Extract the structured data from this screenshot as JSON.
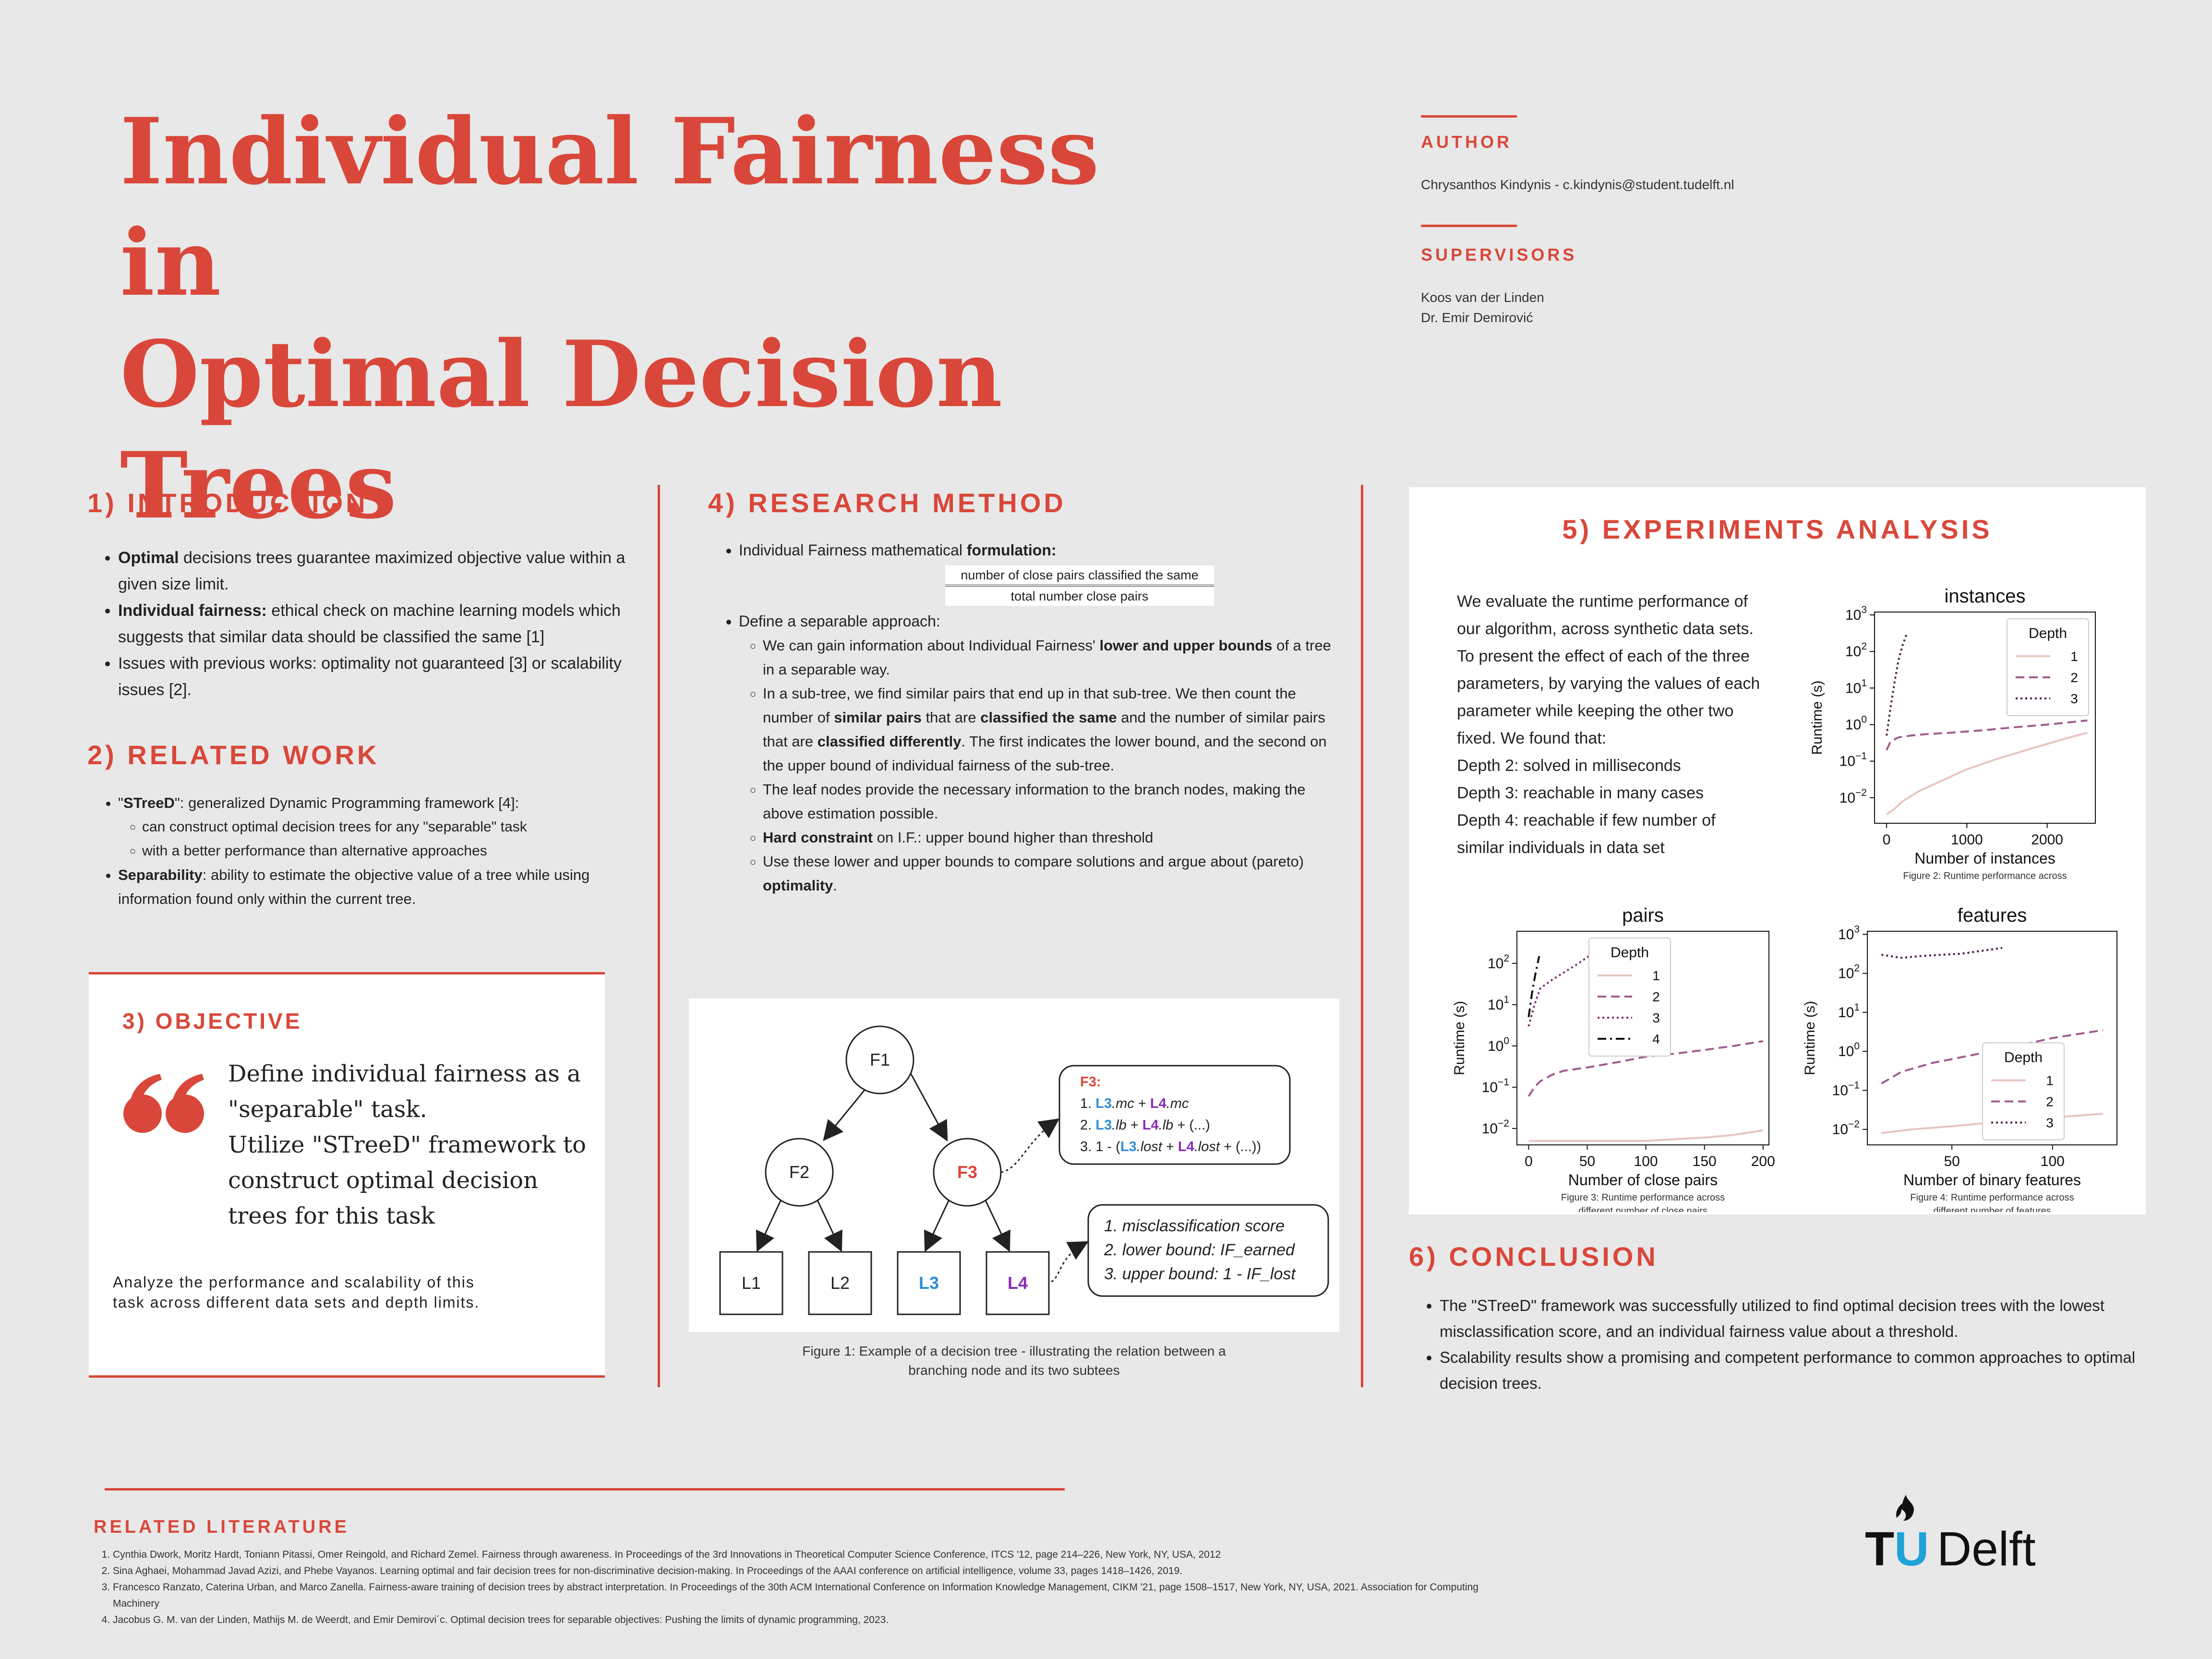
{
  "header": {
    "title_line1": "Individual Fairness in",
    "title_line2": "Optimal Decision Trees",
    "author_label": "AUTHOR",
    "author": "Chrysanthos Kindynis - c.kindynis@student.tudelft.nl",
    "supervisors_label": "SUPERVISORS",
    "supervisors": [
      "Koos van der Linden",
      "Dr. Emir Demirović"
    ]
  },
  "intro": {
    "heading": "1) INTRODUCTION",
    "items": [
      {
        "bold": "Optimal",
        "text": " decisions trees guarantee maximized objective value within a given size limit."
      },
      {
        "bold": "Individual fairness:",
        "text": " ethical check on machine learning models which suggests that similar data should be classified the same [1]"
      },
      {
        "bold": "",
        "text": "Issues with previous works: optimality not guaranteed [3] or scalability issues [2]."
      }
    ]
  },
  "related": {
    "heading": "2) RELATED WORK",
    "item1_pre": "\"",
    "item1_bold": "STreeD",
    "item1_post": "\": generalized Dynamic Programming framework [4]:",
    "sub": [
      "can construct optimal decision trees for any \"separable\" task",
      "with a better performance than alternative approaches"
    ],
    "item2_bold": "Separability",
    "item2_text": ": ability to estimate the objective value of a tree while using information found only within the current tree."
  },
  "objective": {
    "heading": "3) OBJECTIVE",
    "quote": [
      "Define individual fairness as a",
      "\"separable\" task.",
      "Utilize \"STreeD\" framework to",
      "construct optimal decision",
      "trees for this task"
    ],
    "note": [
      "Analyze the performance and scalability of this",
      "task across different data sets and depth limits."
    ]
  },
  "method": {
    "heading": "4) RESEARCH METHOD",
    "b1_pre": "Individual Fairness mathematical ",
    "b1_bold": "formulation:",
    "frac_num": "number of close pairs classified the same",
    "frac_den": "total number close pairs",
    "b2": "Define a separable approach:",
    "s1_pre": "We can gain information about Individual Fairness' ",
    "s1_bold": "lower and upper bounds",
    "s1_post": " of a tree in a separable way.",
    "s2_a": "In a sub-tree, we find similar pairs that end up in that sub-tree. We then count the number of ",
    "s2_b": "similar pairs",
    "s2_c": " that are ",
    "s2_d": "classified the same",
    "s2_e": " and the number of similar pairs that are ",
    "s2_f": "classified differently",
    "s2_g": ". The first indicates the lower bound, and the second on the upper bound of individual fairness of the sub-tree.",
    "s3": "The leaf nodes provide the necessary information to the branch nodes, making the above estimation possible.",
    "s4_bold": "Hard constraint",
    "s4_text": " on I.F.: upper bound higher than threshold",
    "s5_pre": "Use these lower and upper bounds to compare solutions and argue about (pareto) ",
    "s5_bold": "optimality",
    "s5_post": "."
  },
  "tree": {
    "nodes": [
      "F1",
      "F2",
      "F3"
    ],
    "leaves": [
      "L1",
      "L2",
      "L3",
      "L4"
    ],
    "f3_title": "F3:",
    "f3_lines": [
      {
        "n": "1. ",
        "a": "L3",
        "a_s": ".mc",
        "p": " + ",
        "b": "L4",
        "b_s": ".mc",
        "r": ""
      },
      {
        "n": "2. ",
        "a": "L3",
        "a_s": ".lb",
        "p": " + ",
        "b": "L4",
        "b_s": ".lb",
        "r": " + (...)"
      },
      {
        "n": "3. 1 - (",
        "a": "L3",
        "a_s": ".lost",
        "p": " + ",
        "b": "L4",
        "b_s": ".lost",
        "r": " + (...))"
      }
    ],
    "leaf_lines": [
      "1. misclassification score",
      "2. lower bound: IF_earned",
      "3. upper bound: 1 - IF_lost"
    ],
    "caption": [
      "Figure 1: Example of a decision tree - illustrating the relation between a",
      "branching node and its two subtees"
    ],
    "colors": {
      "blue": "#2e8fd6",
      "purple": "#8a2ab8",
      "red": "#d9473a"
    }
  },
  "experiments": {
    "heading": "5) EXPERIMENTS ANALYSIS",
    "text": [
      "We evaluate the runtime performance of",
      "our algorithm, across synthetic data sets.",
      "To present the effect of each of the three",
      "parameters, by varying the values of each",
      "parameter while keeping the other two",
      "fixed. We found that:",
      "Depth 2: solved in milliseconds",
      "Depth 3: reachable in many cases",
      "Depth 4: reachable if few number of",
      "similar individuals in data set"
    ]
  },
  "conclusion": {
    "heading": "6) CONCLUSION",
    "items": [
      "The \"STreeD\" framework was successfully utilized to find optimal decision trees with the lowest misclassification score, and an individual fairness value about a threshold.",
      "Scalability results show a promising and competent performance to common approaches to optimal decision trees."
    ]
  },
  "literature": {
    "heading": "RELATED LITERATURE",
    "refs": [
      "Cynthia Dwork, Moritz Hardt, Toniann Pitassi, Omer Reingold, and Richard Zemel. Fairness through awareness. In Proceedings of the 3rd Innovations in Theoretical Computer Science Conference, ITCS '12, page 214–226, New York, NY, USA, 2012",
      "Sina Aghaei, Mohammad Javad Azizi, and Phebe Vayanos. Learning optimal and fair decision trees for non-discriminative decision-making. In Proceedings of the AAAI conference on artificial intelligence, volume 33, pages 1418–1426, 2019.",
      "Francesco Ranzato, Caterina Urban, and Marco Zanella. Fairness-aware training of decision trees by abstract interpretation. In Proceedings of the 30th ACM International Conference on Information Knowledge Management, CIKM '21, page 1508–1517, New York, NY, USA, 2021. Association for Computing Machinery",
      "Jacobus G. M. van der Linden, Mathijs M. de Weerdt, and Emir Demirovi´c. Optimal decision trees for separable objectives: Pushing the limits of dynamic programming, 2023."
    ]
  },
  "logo": {
    "tu": "TU",
    "delft": "Delft"
  },
  "chart_data": [
    {
      "type": "line",
      "title": "instances",
      "xlabel": "Number of instances",
      "ylabel": "Runtime (s)",
      "yscale": "log",
      "xlim": [
        -150,
        2600
      ],
      "ylim": [
        0.002,
        1200
      ],
      "xticks": [
        0,
        1000,
        2000
      ],
      "yticks": [
        0.01,
        0.1,
        1,
        10,
        100,
        1000
      ],
      "legend_title": "Depth",
      "legend_position": "top-right",
      "caption": [
        "Figure 2: Runtime performance across"
      ],
      "series": [
        {
          "name": "1",
          "color": "#e8c4c0",
          "dash": "solid",
          "x": [
            0,
            100,
            200,
            400,
            700,
            1000,
            1400,
            1800,
            2200,
            2500
          ],
          "y": [
            0.0035,
            0.005,
            0.008,
            0.015,
            0.03,
            0.06,
            0.12,
            0.22,
            0.4,
            0.6
          ]
        },
        {
          "name": "2",
          "color": "#a05a8e",
          "dash": "dashed",
          "x": [
            0,
            50,
            150,
            300,
            500,
            800,
            1200,
            1600,
            2000,
            2500
          ],
          "y": [
            0.2,
            0.35,
            0.45,
            0.5,
            0.55,
            0.6,
            0.7,
            0.85,
            1.0,
            1.3
          ]
        },
        {
          "name": "3",
          "color": "#4a1e45",
          "dash": "dotted",
          "x": [
            0,
            50,
            100,
            150,
            200,
            250
          ],
          "y": [
            0.5,
            3,
            15,
            60,
            150,
            300
          ]
        }
      ]
    },
    {
      "type": "line",
      "title": "pairs",
      "xlabel": "Number of close pairs",
      "ylabel": "Runtime (s)",
      "yscale": "log",
      "xlim": [
        -10,
        205
      ],
      "ylim": [
        0.004,
        600
      ],
      "xticks": [
        0,
        50,
        100,
        150,
        200
      ],
      "yticks": [
        0.01,
        0.1,
        1,
        10,
        100
      ],
      "legend_title": "Depth",
      "legend_position": "top-left",
      "caption": [
        "Figure 3: Runtime performance across",
        "different number of close pairs"
      ],
      "series": [
        {
          "name": "1",
          "color": "#e8c4c0",
          "dash": "solid",
          "x": [
            0,
            25,
            50,
            75,
            100,
            125,
            150,
            175,
            200
          ],
          "y": [
            0.005,
            0.005,
            0.005,
            0.005,
            0.005,
            0.0055,
            0.006,
            0.007,
            0.009
          ]
        },
        {
          "name": "2",
          "color": "#a05a8e",
          "dash": "dashed",
          "x": [
            0,
            5,
            10,
            20,
            30,
            50,
            75,
            100,
            125,
            150,
            175,
            200
          ],
          "y": [
            0.06,
            0.1,
            0.14,
            0.2,
            0.25,
            0.3,
            0.4,
            0.55,
            0.65,
            0.8,
            1.0,
            1.3
          ]
        },
        {
          "name": "3",
          "color": "#7a2e6e",
          "dash": "dotted",
          "x": [
            0,
            5,
            10,
            20,
            30,
            40,
            50,
            60
          ],
          "y": [
            3,
            10,
            25,
            40,
            60,
            90,
            140,
            250
          ]
        },
        {
          "name": "4",
          "color": "#111111",
          "dash": "dashdot",
          "x": [
            0,
            3,
            6,
            9
          ],
          "y": [
            5,
            20,
            60,
            150
          ]
        }
      ]
    },
    {
      "type": "line",
      "title": "features",
      "xlabel": "Number of binary features",
      "ylabel": "Runtime (s)",
      "yscale": "log",
      "xlim": [
        8,
        132
      ],
      "ylim": [
        0.004,
        1200
      ],
      "xticks": [
        50,
        100
      ],
      "yticks": [
        0.01,
        0.1,
        1,
        10,
        100,
        1000
      ],
      "legend_title": "Depth",
      "legend_position": "center",
      "caption": [
        "Figure 4: Runtime performance across",
        "different number of features"
      ],
      "series": [
        {
          "name": "1",
          "color": "#e8c4c0",
          "dash": "solid",
          "x": [
            15,
            30,
            50,
            70,
            90,
            110,
            125
          ],
          "y": [
            0.008,
            0.01,
            0.012,
            0.015,
            0.018,
            0.022,
            0.025
          ]
        },
        {
          "name": "2",
          "color": "#a05a8e",
          "dash": "dashed",
          "x": [
            15,
            25,
            40,
            60,
            80,
            100,
            125
          ],
          "y": [
            0.15,
            0.3,
            0.5,
            0.8,
            1.3,
            2.2,
            3.5
          ]
        },
        {
          "name": "3",
          "color": "#4a1e45",
          "dash": "dotted",
          "x": [
            15,
            25,
            35,
            45,
            55,
            65,
            75
          ],
          "y": [
            300,
            250,
            280,
            300,
            320,
            380,
            450
          ]
        }
      ]
    }
  ]
}
